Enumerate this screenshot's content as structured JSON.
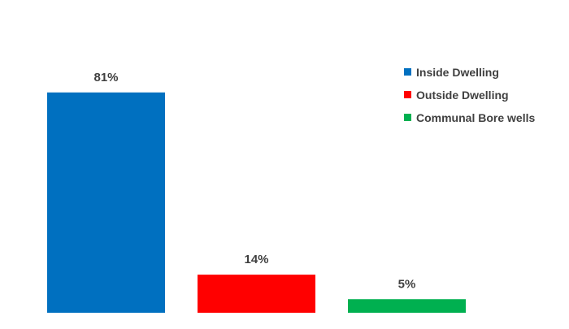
{
  "chart_data": {
    "type": "bar",
    "categories": [
      "Inside Dwelling",
      "Outside Dwelling",
      "Communal Bore wells"
    ],
    "values": [
      81,
      14,
      5
    ],
    "unit": "%",
    "data_labels": [
      "81%",
      "14%",
      "5%"
    ],
    "colors": [
      "#0070c0",
      "#ff0000",
      "#00b050"
    ],
    "ylim": [
      0,
      100
    ],
    "grid": false,
    "legend_position": "right",
    "title": "",
    "xlabel": "",
    "ylabel": ""
  }
}
